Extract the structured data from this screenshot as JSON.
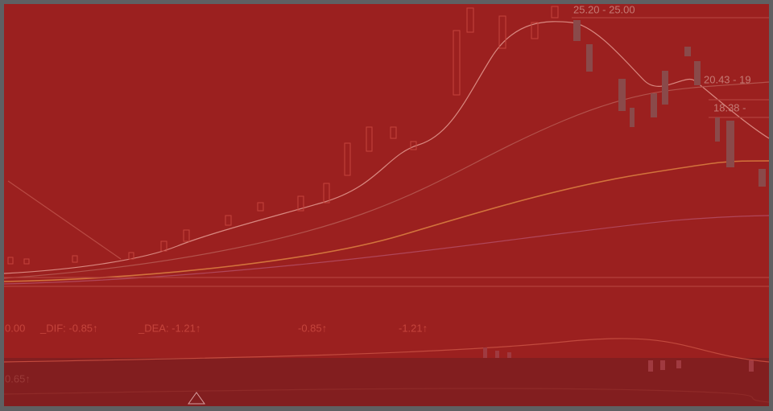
{
  "price_labels": [
    "25.20 - 25.00",
    "20.43 - 19",
    "18.38 -"
  ],
  "indicator_row": [
    "0.00",
    "_DIF: -0.85↑",
    "_DEA: -1.21↑",
    "-0.85↑",
    "-1.21↑"
  ],
  "lower_row": [
    "0.65↑"
  ]
}
